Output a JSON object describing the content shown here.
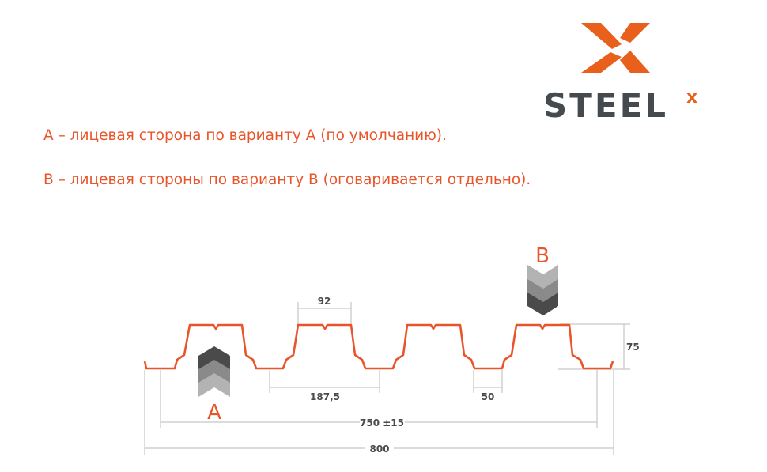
{
  "logo": {
    "text": "STEEL",
    "superscript": "x",
    "colors": {
      "orange": "#e8601c",
      "gray": "#454a4f"
    }
  },
  "captions": [
    "A – лицевая сторона по варианту A (по умолчанию).",
    "B – лицевая стороны по варианту B (оговаривается отдельно)."
  ],
  "diagram": {
    "profile_color": "#e8552a",
    "side_a_label": "A",
    "side_b_label": "B",
    "dimensions": {
      "top_width": "92",
      "pitch": "187,5",
      "bottom_width": "50",
      "height": "75",
      "working_width": "750 ±15",
      "total_width": "800"
    }
  }
}
